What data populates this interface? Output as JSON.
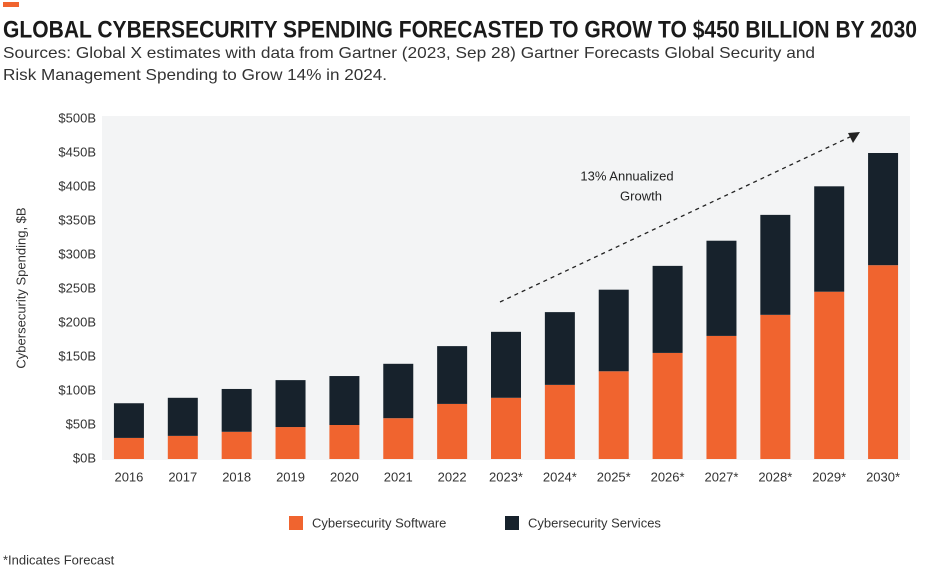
{
  "chart_data": {
    "type": "stacked_bar",
    "title": "GLOBAL CYBERSECURITY SPENDING FORECASTED TO GROW TO $450 BILLION BY 2030",
    "subtitle": [
      "Sources: Global X estimates with data from Gartner (2023, Sep 28) Gartner Forecasts Global Security and",
      "Risk Management Spending to Grow 14% in 2024."
    ],
    "y_label": "Cybersecurity Spending, $B",
    "annotation": [
      "13% Annualized",
      "Growth"
    ],
    "footnote": "*Indicates Forecast",
    "categories": [
      "2016",
      "2017",
      "2018",
      "2019",
      "2020",
      "2021",
      "2022",
      "2023*",
      "2024*",
      "2025*",
      "2026*",
      "2027*",
      "2028*",
      "2029*",
      "2030*"
    ],
    "series": [
      {
        "name": "Cybersecurity Software",
        "color": "#f0642f",
        "values": [
          31,
          34,
          40,
          47,
          50,
          60,
          81,
          90,
          109,
          129,
          156,
          181,
          212,
          246,
          285
        ]
      },
      {
        "name": "Cybersecurity Services",
        "color": "#17222c",
        "values": [
          51,
          56,
          63,
          69,
          72,
          80,
          85,
          97,
          107,
          120,
          128,
          140,
          147,
          155,
          165
        ]
      }
    ],
    "ylim": [
      0,
      500
    ],
    "yticks": [
      {
        "value": 0,
        "label": "$0B"
      },
      {
        "value": 50,
        "label": "$50B"
      },
      {
        "value": 100,
        "label": "$100B"
      },
      {
        "value": 150,
        "label": "$150B"
      },
      {
        "value": 200,
        "label": "$200B"
      },
      {
        "value": 250,
        "label": "$250B"
      },
      {
        "value": 300,
        "label": "$300B"
      },
      {
        "value": 350,
        "label": "$350B"
      },
      {
        "value": 400,
        "label": "$400B"
      },
      {
        "value": 450,
        "label": "$450B"
      },
      {
        "value": 500,
        "label": "$500B"
      }
    ],
    "grid": false
  }
}
